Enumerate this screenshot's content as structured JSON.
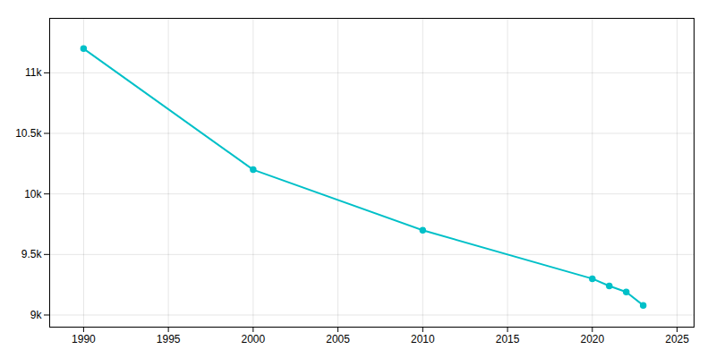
{
  "chart_data": {
    "type": "line",
    "x": [
      1990,
      2000,
      2010,
      2020,
      2021,
      2022,
      2023
    ],
    "values": [
      11200,
      10200,
      9700,
      9300,
      9240,
      9190,
      9080
    ],
    "color": "#00c0c8",
    "marker": "circle",
    "xlim": [
      1988,
      2026
    ],
    "ylim": [
      8900,
      11450
    ],
    "xticks": [
      1990,
      1995,
      2000,
      2005,
      2010,
      2015,
      2020,
      2025
    ],
    "yticks": [
      {
        "value": 9000,
        "label": "9k"
      },
      {
        "value": 9500,
        "label": "9.5k"
      },
      {
        "value": 10000,
        "label": "10k"
      },
      {
        "value": 10500,
        "label": "10.5k"
      },
      {
        "value": 11000,
        "label": "11k"
      }
    ],
    "grid": true
  }
}
